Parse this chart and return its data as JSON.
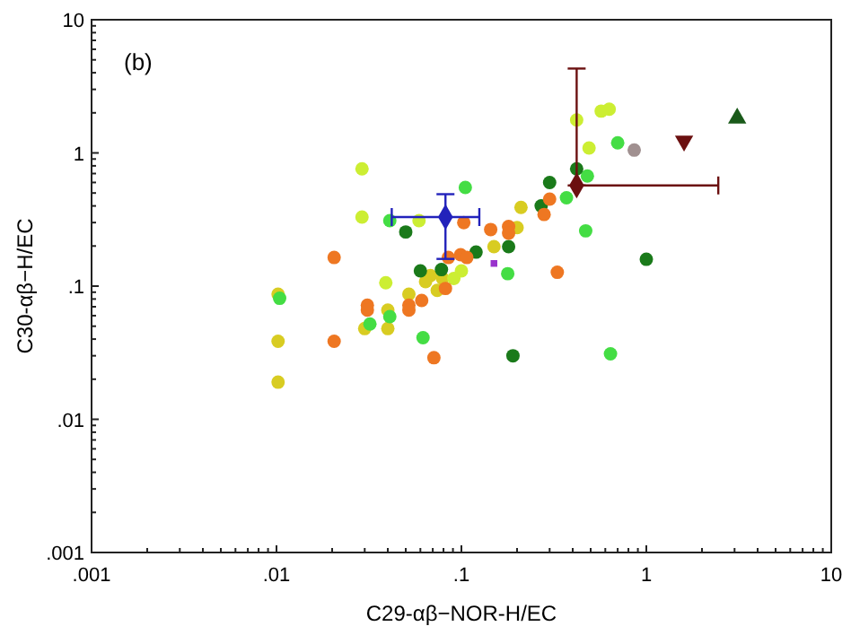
{
  "chart_data": {
    "type": "scatter",
    "xlabel": "C29-αβ−NOR-H/EC",
    "ylabel": "C30-αβ−H/EC",
    "annotations": [
      "(b)"
    ],
    "log": "xy",
    "grid": false,
    "marker": "circle",
    "xlim": [
      0.001,
      10
    ],
    "ylim": [
      0.001,
      10
    ],
    "xticks": [
      {
        "value": 0.001,
        "label": ".001"
      },
      {
        "value": 0.002,
        "label": null
      },
      {
        "value": 0.003,
        "label": null
      },
      {
        "value": 0.004,
        "label": null
      },
      {
        "value": 0.005,
        "label": null
      },
      {
        "value": 0.006,
        "label": null
      },
      {
        "value": 0.007,
        "label": null
      },
      {
        "value": 0.008,
        "label": null
      },
      {
        "value": 0.009,
        "label": null
      },
      {
        "value": 0.01,
        "label": ".01"
      },
      {
        "value": 0.02,
        "label": null
      },
      {
        "value": 0.03,
        "label": null
      },
      {
        "value": 0.04,
        "label": null
      },
      {
        "value": 0.05,
        "label": null
      },
      {
        "value": 0.06,
        "label": null
      },
      {
        "value": 0.07,
        "label": null
      },
      {
        "value": 0.08,
        "label": null
      },
      {
        "value": 0.09,
        "label": null
      },
      {
        "value": 0.1,
        "label": ".1"
      },
      {
        "value": 0.2,
        "label": null
      },
      {
        "value": 0.3,
        "label": null
      },
      {
        "value": 0.4,
        "label": null
      },
      {
        "value": 0.5,
        "label": null
      },
      {
        "value": 0.6,
        "label": null
      },
      {
        "value": 0.7,
        "label": null
      },
      {
        "value": 0.8,
        "label": null
      },
      {
        "value": 0.9,
        "label": null
      },
      {
        "value": 1,
        "label": "1"
      },
      {
        "value": 2,
        "label": null
      },
      {
        "value": 3,
        "label": null
      },
      {
        "value": 4,
        "label": null
      },
      {
        "value": 5,
        "label": null
      },
      {
        "value": 6,
        "label": null
      },
      {
        "value": 7,
        "label": null
      },
      {
        "value": 8,
        "label": null
      },
      {
        "value": 9,
        "label": null
      },
      {
        "value": 10,
        "label": "10"
      }
    ],
    "yticks": [
      {
        "value": 0.001,
        "label": ".001"
      },
      {
        "value": 0.002,
        "label": null
      },
      {
        "value": 0.003,
        "label": null
      },
      {
        "value": 0.004,
        "label": null
      },
      {
        "value": 0.005,
        "label": null
      },
      {
        "value": 0.006,
        "label": null
      },
      {
        "value": 0.007,
        "label": null
      },
      {
        "value": 0.008,
        "label": null
      },
      {
        "value": 0.009,
        "label": null
      },
      {
        "value": 0.01,
        "label": ".01"
      },
      {
        "value": 0.02,
        "label": null
      },
      {
        "value": 0.03,
        "label": null
      },
      {
        "value": 0.04,
        "label": null
      },
      {
        "value": 0.05,
        "label": null
      },
      {
        "value": 0.06,
        "label": null
      },
      {
        "value": 0.07,
        "label": null
      },
      {
        "value": 0.08,
        "label": null
      },
      {
        "value": 0.09,
        "label": null
      },
      {
        "value": 0.1,
        "label": ".1"
      },
      {
        "value": 0.2,
        "label": null
      },
      {
        "value": 0.3,
        "label": null
      },
      {
        "value": 0.4,
        "label": null
      },
      {
        "value": 0.5,
        "label": null
      },
      {
        "value": 0.6,
        "label": null
      },
      {
        "value": 0.7,
        "label": null
      },
      {
        "value": 0.8,
        "label": null
      },
      {
        "value": 0.9,
        "label": null
      },
      {
        "value": 1,
        "label": "1"
      },
      {
        "value": 2,
        "label": null
      },
      {
        "value": 3,
        "label": null
      },
      {
        "value": 4,
        "label": null
      },
      {
        "value": 5,
        "label": null
      },
      {
        "value": 6,
        "label": null
      },
      {
        "value": 7,
        "label": null
      },
      {
        "value": 8,
        "label": null
      },
      {
        "value": 9,
        "label": null
      },
      {
        "value": 10,
        "label": "10"
      }
    ],
    "series": [
      {
        "color": "#d8cc22",
        "x": [
          0.21,
          0.2,
          0.15,
          0.068,
          0.064,
          0.074,
          0.079,
          0.052,
          0.03,
          0.04,
          0.04,
          0.0102,
          0.0102,
          0.0102
        ],
        "values": [
          0.39,
          0.275,
          0.198,
          0.12,
          0.108,
          0.093,
          0.114,
          0.087,
          0.048,
          0.066,
          0.048,
          0.087,
          0.0385,
          0.019
        ]
      },
      {
        "color": "#ccee33",
        "x": [
          0.029,
          0.029,
          0.059,
          0.1,
          0.091,
          0.039,
          0.42,
          0.57,
          0.63,
          0.49
        ],
        "values": [
          0.76,
          0.33,
          0.31,
          0.13,
          0.114,
          0.106,
          1.77,
          2.06,
          2.13,
          1.09
        ]
      },
      {
        "color": "#44dd44",
        "x": [
          0.105,
          0.041,
          0.178,
          0.032,
          0.041,
          0.0104,
          0.062,
          0.7,
          0.48,
          0.37,
          0.47,
          0.64
        ],
        "values": [
          0.55,
          0.31,
          0.124,
          0.052,
          0.059,
          0.081,
          0.041,
          1.19,
          0.67,
          0.46,
          0.26,
          0.031
        ]
      },
      {
        "color": "#1a7a1a",
        "x": [
          0.05,
          0.3,
          0.27,
          0.18,
          0.12,
          0.06,
          0.078,
          0.19,
          0.42,
          1.0
        ],
        "values": [
          0.255,
          0.6,
          0.4,
          0.198,
          0.18,
          0.13,
          0.133,
          0.03,
          0.76,
          0.159
        ]
      },
      {
        "color": "#ee7722",
        "x": [
          0.103,
          0.3,
          0.28,
          0.144,
          0.18,
          0.18,
          0.0205,
          0.085,
          0.099,
          0.107,
          0.082,
          0.061,
          0.052,
          0.052,
          0.031,
          0.031,
          0.0205,
          0.071,
          0.33
        ],
        "values": [
          0.3,
          0.45,
          0.345,
          0.266,
          0.28,
          0.25,
          0.164,
          0.164,
          0.172,
          0.164,
          0.096,
          0.078,
          0.072,
          0.066,
          0.072,
          0.066,
          0.0385,
          0.029,
          0.127
        ]
      },
      {
        "color": "#2222bb",
        "marker": "diamond",
        "x": [
          0.082
        ],
        "values": [
          0.33
        ],
        "errors": [
          [
            0.16,
            0.49
          ]
        ],
        "xerrors": [
          [
            0.042,
            0.125
          ]
        ]
      },
      {
        "color": "#6b1010",
        "marker": "diamond",
        "x": [
          0.42
        ],
        "values": [
          0.57
        ],
        "errors": [
          [
            0.57,
            4.3
          ]
        ],
        "xerrors": [
          [
            0.42,
            2.45
          ]
        ]
      },
      {
        "color": "#a09090",
        "marker": "circle",
        "x": [
          0.86
        ],
        "values": [
          1.05
        ]
      },
      {
        "color": "#9933cc",
        "marker": "square",
        "x": [
          0.15
        ],
        "values": [
          0.148
        ]
      },
      {
        "color": "#6b1010",
        "marker": "triangle-down",
        "x": [
          1.6
        ],
        "values": [
          1.23
        ]
      },
      {
        "color": "#1a5a1a",
        "marker": "triangle",
        "x": [
          3.1
        ],
        "values": [
          1.82
        ]
      }
    ]
  }
}
